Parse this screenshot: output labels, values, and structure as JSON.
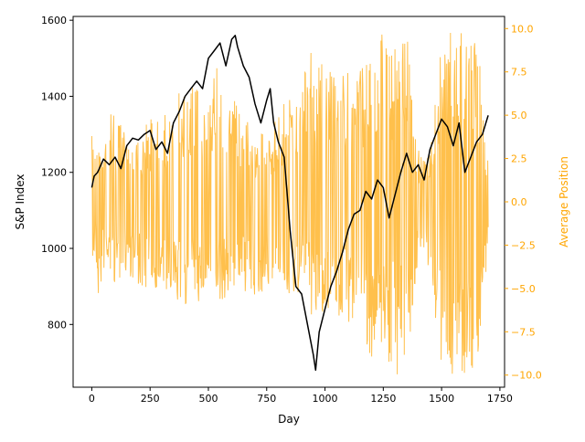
{
  "chart_data": {
    "type": "line",
    "title": "",
    "xlabel": "Day",
    "ylabel_left": "S&P Index",
    "ylabel_right": "Average Position",
    "xlim": [
      -80,
      1770
    ],
    "ylim_left": [
      635,
      1610
    ],
    "ylim_right": [
      -10.7,
      10.7
    ],
    "x_ticks": [
      0,
      250,
      500,
      750,
      1000,
      1250,
      1500,
      1750
    ],
    "x_tick_labels": [
      "0",
      "250",
      "500",
      "750",
      "1000",
      "1250",
      "1500",
      "1750"
    ],
    "y_left_ticks": [
      800,
      1000,
      1200,
      1400,
      1600
    ],
    "y_left_tick_labels": [
      "800",
      "1000",
      "1200",
      "1400",
      "1600"
    ],
    "y_right_ticks": [
      -10,
      -7.5,
      -5,
      -2.5,
      0,
      2.5,
      5,
      7.5,
      10
    ],
    "y_right_tick_labels": [
      "−10.0",
      "−7.5",
      "−5.0",
      "−2.5",
      "0.0",
      "2.5",
      "5.0",
      "7.5",
      "10.0"
    ],
    "grid": false,
    "colors": {
      "sp_index": "#000000",
      "avg_position": "#ffa500",
      "right_axis": "#ffa500"
    },
    "series": [
      {
        "axis": "left",
        "color": "#000000",
        "x": [
          0,
          10,
          25,
          50,
          75,
          100,
          125,
          150,
          175,
          200,
          225,
          250,
          275,
          300,
          325,
          350,
          375,
          400,
          425,
          450,
          475,
          500,
          525,
          550,
          575,
          600,
          615,
          625,
          650,
          675,
          700,
          725,
          750,
          765,
          780,
          800,
          825,
          850,
          875,
          900,
          925,
          950,
          960,
          975,
          1000,
          1025,
          1050,
          1075,
          1100,
          1125,
          1150,
          1175,
          1200,
          1225,
          1250,
          1275,
          1300,
          1325,
          1350,
          1375,
          1400,
          1425,
          1450,
          1475,
          1500,
          1525,
          1550,
          1575,
          1600,
          1625,
          1650,
          1675,
          1700
        ],
        "y": [
          1160,
          1190,
          1200,
          1235,
          1220,
          1240,
          1210,
          1270,
          1290,
          1285,
          1300,
          1310,
          1260,
          1280,
          1250,
          1330,
          1360,
          1400,
          1420,
          1440,
          1420,
          1500,
          1520,
          1540,
          1480,
          1550,
          1560,
          1530,
          1480,
          1450,
          1380,
          1330,
          1390,
          1420,
          1330,
          1280,
          1240,
          1050,
          900,
          880,
          800,
          720,
          680,
          780,
          840,
          900,
          940,
          990,
          1050,
          1090,
          1100,
          1150,
          1130,
          1180,
          1160,
          1080,
          1140,
          1200,
          1250,
          1200,
          1220,
          1180,
          1260,
          1300,
          1340,
          1320,
          1270,
          1330,
          1200,
          1240,
          1280,
          1300,
          1350
        ]
      },
      {
        "axis": "right",
        "color": "#ffa500",
        "x": [
          0,
          15,
          30,
          50,
          75,
          100,
          150,
          200,
          250,
          300,
          350,
          400,
          450,
          500,
          550,
          600,
          650,
          700,
          750,
          800,
          850,
          900,
          950,
          1000,
          1050,
          1100,
          1150,
          1200,
          1250,
          1300,
          1350,
          1400,
          1450,
          1500,
          1550,
          1600,
          1650,
          1700
        ],
        "y_high": [
          4,
          3,
          5,
          4,
          6,
          5,
          4,
          4,
          5,
          5,
          6,
          7,
          7,
          7,
          9,
          7,
          5,
          4,
          4,
          5,
          7,
          8,
          9,
          8,
          7,
          8,
          8,
          9,
          10,
          9,
          10,
          3,
          3,
          10,
          10,
          10,
          10,
          3
        ],
        "y_low": [
          -5,
          -3,
          -6,
          -4,
          -4,
          -5,
          -4,
          -5,
          -5,
          -5,
          -6,
          -6,
          -6,
          -5,
          -6,
          -5,
          -5,
          -6,
          -5,
          -5,
          -6,
          -5,
          -7,
          -7,
          -7,
          -7,
          -8,
          -9,
          -9,
          -10,
          -10,
          -3,
          -4,
          -10,
          -10,
          -10,
          -10,
          -3
        ]
      }
    ]
  }
}
